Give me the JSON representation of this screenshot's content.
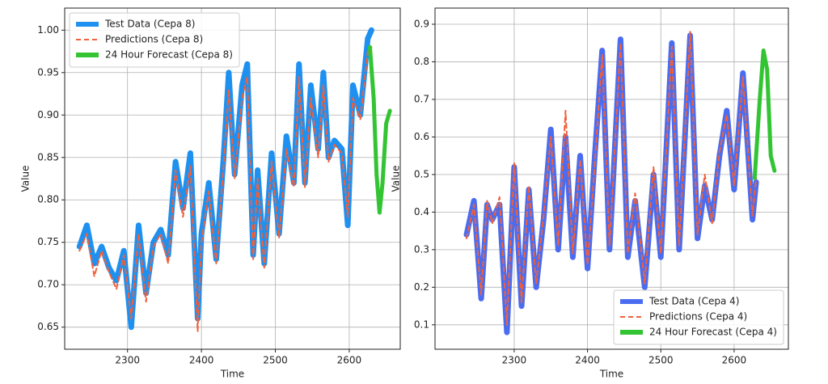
{
  "chart_data": [
    {
      "type": "line",
      "xlabel": "Time",
      "ylabel": "Value",
      "legend": "upper left",
      "grid": true,
      "xlim": [
        2215,
        2669
      ],
      "xticks": [
        2300,
        2400,
        2500,
        2600
      ],
      "ylim": [
        0.624,
        1.026
      ],
      "yticks": [
        {
          "value": 0.65,
          "label": "0.65"
        },
        {
          "value": 0.7,
          "label": "0.70"
        },
        {
          "value": 0.75,
          "label": "0.75"
        },
        {
          "value": 0.8,
          "label": "0.80"
        },
        {
          "value": 0.85,
          "label": "0.85"
        },
        {
          "value": 0.9,
          "label": "0.90"
        },
        {
          "value": 0.95,
          "label": "0.95"
        },
        {
          "value": 1.0,
          "label": "1.00"
        }
      ],
      "series": [
        {
          "name": "Test Data (Cepa 8)",
          "color": "#1e90f0",
          "linestyle": "solid",
          "x": [
            2235,
            2245,
            2255,
            2265,
            2275,
            2285,
            2295,
            2305,
            2315,
            2325,
            2335,
            2345,
            2355,
            2365,
            2375,
            2385,
            2395,
            2400,
            2410,
            2420,
            2430,
            2437,
            2445,
            2455,
            2462,
            2470,
            2476,
            2485,
            2495,
            2505,
            2515,
            2525,
            2532,
            2540,
            2548,
            2558,
            2565,
            2572,
            2580,
            2590,
            2598,
            2605,
            2615,
            2625,
            2630
          ],
          "values": [
            0.745,
            0.77,
            0.725,
            0.745,
            0.72,
            0.705,
            0.74,
            0.65,
            0.77,
            0.69,
            0.75,
            0.765,
            0.735,
            0.845,
            0.79,
            0.855,
            0.66,
            0.76,
            0.82,
            0.73,
            0.85,
            0.95,
            0.83,
            0.935,
            0.96,
            0.735,
            0.835,
            0.725,
            0.855,
            0.76,
            0.875,
            0.82,
            0.96,
            0.82,
            0.935,
            0.86,
            0.95,
            0.85,
            0.87,
            0.86,
            0.77,
            0.935,
            0.9,
            0.99,
            1.0
          ]
        },
        {
          "name": "Predictions (Cepa 8)",
          "color": "#f0603c",
          "linestyle": "dashed",
          "x": [
            2235,
            2245,
            2255,
            2265,
            2275,
            2285,
            2295,
            2305,
            2315,
            2325,
            2335,
            2345,
            2355,
            2365,
            2375,
            2385,
            2395,
            2400,
            2410,
            2420,
            2430,
            2437,
            2445,
            2455,
            2462,
            2470,
            2476,
            2485,
            2495,
            2505,
            2515,
            2525,
            2532,
            2540,
            2548,
            2558,
            2565,
            2572,
            2580,
            2590,
            2598,
            2605,
            2615,
            2625,
            2630
          ],
          "values": [
            0.74,
            0.76,
            0.71,
            0.74,
            0.715,
            0.695,
            0.735,
            0.66,
            0.76,
            0.68,
            0.745,
            0.76,
            0.725,
            0.835,
            0.78,
            0.84,
            0.645,
            0.75,
            0.81,
            0.725,
            0.84,
            0.93,
            0.825,
            0.92,
            0.945,
            0.73,
            0.825,
            0.72,
            0.845,
            0.755,
            0.86,
            0.815,
            0.945,
            0.815,
            0.92,
            0.85,
            0.935,
            0.845,
            0.865,
            0.855,
            0.78,
            0.92,
            0.895,
            0.975,
            0.98
          ]
        },
        {
          "name": "24 Hour Forecast (Cepa 8)",
          "color": "#33c433",
          "linestyle": "solid",
          "x": [
            2628,
            2633,
            2637,
            2641,
            2645,
            2650,
            2655
          ],
          "values": [
            0.98,
            0.92,
            0.83,
            0.785,
            0.82,
            0.89,
            0.905
          ]
        }
      ]
    },
    {
      "type": "line",
      "xlabel": "Time",
      "ylabel": "Value",
      "legend": "lower right",
      "grid": true,
      "xlim": [
        2192,
        2674
      ],
      "xticks": [
        2300,
        2400,
        2500,
        2600
      ],
      "ylim": [
        0.035,
        0.943
      ],
      "yticks": [
        0.1,
        0.2,
        0.3,
        0.4,
        0.5,
        0.6,
        0.7,
        0.8,
        0.9
      ],
      "series": [
        {
          "name": "Test Data (Cepa 4)",
          "color": "#4a6cf0",
          "linestyle": "solid",
          "x": [
            2235,
            2245,
            2255,
            2263,
            2270,
            2280,
            2290,
            2300,
            2310,
            2320,
            2330,
            2340,
            2350,
            2360,
            2370,
            2380,
            2390,
            2400,
            2410,
            2420,
            2430,
            2445,
            2455,
            2465,
            2478,
            2490,
            2500,
            2515,
            2525,
            2540,
            2550,
            2560,
            2570,
            2580,
            2590,
            2600,
            2612,
            2625,
            2630
          ],
          "values": [
            0.34,
            0.43,
            0.17,
            0.42,
            0.38,
            0.42,
            0.08,
            0.52,
            0.15,
            0.46,
            0.2,
            0.38,
            0.62,
            0.3,
            0.6,
            0.28,
            0.55,
            0.25,
            0.55,
            0.83,
            0.3,
            0.86,
            0.28,
            0.43,
            0.2,
            0.5,
            0.28,
            0.85,
            0.3,
            0.87,
            0.33,
            0.47,
            0.38,
            0.55,
            0.67,
            0.46,
            0.77,
            0.38,
            0.48
          ]
        },
        {
          "name": "Predictions (Cepa 4)",
          "color": "#f0603c",
          "linestyle": "dashed",
          "x": [
            2235,
            2245,
            2255,
            2263,
            2270,
            2280,
            2290,
            2300,
            2310,
            2320,
            2330,
            2340,
            2350,
            2360,
            2370,
            2380,
            2390,
            2400,
            2410,
            2420,
            2430,
            2445,
            2455,
            2465,
            2478,
            2490,
            2500,
            2515,
            2525,
            2540,
            2550,
            2560,
            2570,
            2580,
            2590,
            2600,
            2612,
            2625,
            2630
          ],
          "values": [
            0.33,
            0.42,
            0.18,
            0.43,
            0.37,
            0.44,
            0.1,
            0.53,
            0.16,
            0.47,
            0.21,
            0.39,
            0.6,
            0.31,
            0.67,
            0.29,
            0.54,
            0.26,
            0.53,
            0.82,
            0.31,
            0.85,
            0.29,
            0.45,
            0.21,
            0.52,
            0.29,
            0.84,
            0.31,
            0.88,
            0.34,
            0.5,
            0.37,
            0.56,
            0.66,
            0.47,
            0.76,
            0.39,
            0.49
          ]
        },
        {
          "name": "24 Hour Forecast (Cepa 4)",
          "color": "#33c433",
          "linestyle": "solid",
          "x": [
            2628,
            2635,
            2640,
            2645,
            2650,
            2655
          ],
          "values": [
            0.49,
            0.7,
            0.83,
            0.78,
            0.55,
            0.51
          ]
        }
      ]
    }
  ]
}
